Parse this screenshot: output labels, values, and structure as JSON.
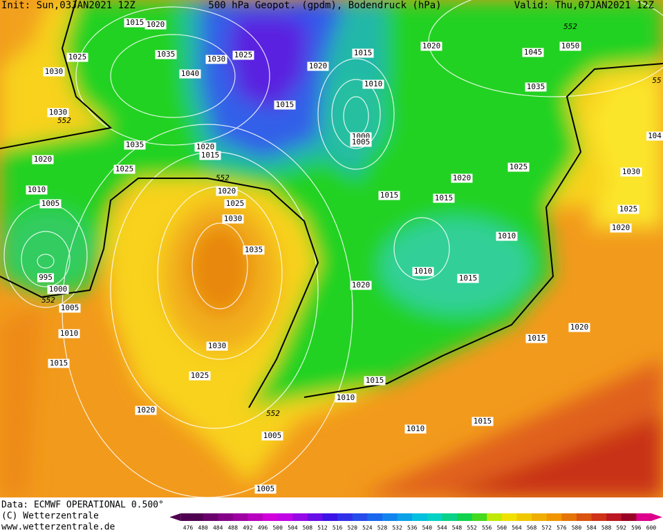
{
  "header": {
    "init": "Init: Sun,03JAN2021 12Z",
    "title": "500 hPa Geopot. (gpdm), Bodendruck (hPa)",
    "valid": "Valid: Thu,07JAN2021 12Z"
  },
  "isobar_labels": [
    1015,
    1020,
    1025,
    1035,
    1030,
    1025,
    1040,
    1030,
    1030,
    552,
    1015,
    1020,
    1015,
    1010,
    1020,
    552,
    1045,
    1050,
    1035,
    55,
    1000,
    1005,
    1035,
    1020,
    1015,
    1020,
    1025,
    1025,
    1030,
    104,
    552,
    1020,
    1010,
    1025,
    1005,
    1015,
    1020,
    1015,
    1030,
    1025,
    1020,
    1010,
    1035,
    1010,
    1015,
    995,
    1000,
    552,
    1005,
    1020,
    1020,
    1010,
    1015,
    1030,
    1015,
    1025,
    1015,
    1010,
    1020,
    552,
    1015,
    1010,
    1005,
    1005
  ],
  "footer": {
    "data": "Data: ECMWF OPERATIONAL 0.500°",
    "copyright": "(C) Wetterzentrale",
    "website": "www.wetterzentrale.de"
  },
  "legend": {
    "labels": [
      476,
      480,
      484,
      488,
      492,
      496,
      500,
      504,
      508,
      512,
      516,
      520,
      524,
      528,
      532,
      536,
      540,
      544,
      548,
      552,
      556,
      560,
      564,
      568,
      572,
      576,
      580,
      584,
      588,
      592,
      596,
      600
    ]
  }
}
